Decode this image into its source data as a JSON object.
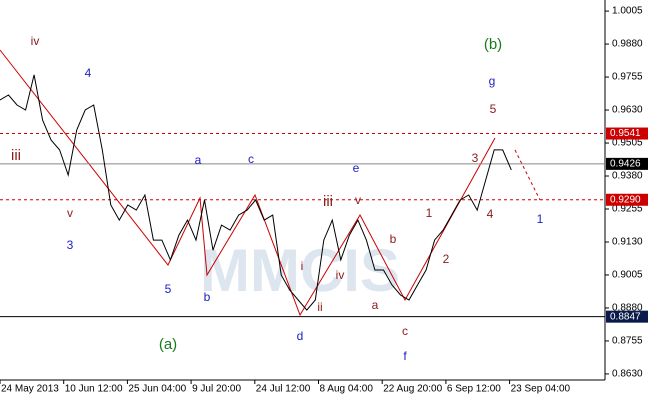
{
  "chart_data": {
    "type": "line",
    "color": "#000000",
    "values": [
      0.9668,
      0.9687,
      0.9649,
      0.963,
      0.9763,
      0.9592,
      0.9516,
      0.9479,
      0.9384,
      0.9554,
      0.963,
      0.9649,
      0.9479,
      0.927,
      0.9213,
      0.927,
      0.9251,
      0.9308,
      0.9137,
      0.9137,
      0.9062,
      0.9156,
      0.9213,
      0.9137,
      0.9289,
      0.9099,
      0.9194,
      0.9175,
      0.9232,
      0.9251,
      0.9289,
      0.9213,
      0.9232,
      0.9005,
      0.8948,
      0.891,
      0.8872,
      0.891,
      0.9137,
      0.9213,
      0.9062,
      0.9156,
      0.9213,
      0.9137,
      0.9024,
      0.9024,
      0.8967,
      0.8929,
      0.891,
      0.8967,
      0.9024,
      0.9137,
      0.9175,
      0.9232,
      0.9289,
      0.9308,
      0.9251,
      0.9365,
      0.9479,
      0.9479,
      0.9403,
      null,
      null,
      null,
      null,
      null,
      null,
      null,
      null,
      null,
      null,
      null
    ],
    "ylim": [
      0.8607,
      1.0047
    ],
    "yticks": [
      {
        "value": 1.0005,
        "label": "1.0005"
      },
      {
        "value": 0.988,
        "label": "0.9880"
      },
      {
        "value": 0.9755,
        "label": "0.9755"
      },
      {
        "value": 0.963,
        "label": "0.9630"
      },
      {
        "value": 0.9505,
        "label": "0.9505"
      },
      {
        "value": 0.938,
        "label": "0.9380"
      },
      {
        "value": 0.9255,
        "label": "0.9255"
      },
      {
        "value": 0.913,
        "label": "0.9130"
      },
      {
        "value": 0.9005,
        "label": "0.9005"
      },
      {
        "value": 0.888,
        "label": "0.8880"
      },
      {
        "value": 0.8755,
        "label": "0.8755"
      },
      {
        "value": 0.863,
        "label": "0.8630"
      }
    ],
    "xtick_labels": [
      "24 May 2013",
      "10 Jun 12:00",
      "25 Jun 04:00",
      "9 Jul 20:00",
      "24 Jul 12:00",
      "8 Aug 04:00",
      "22 Aug 20:00",
      "6 Sep 12:00",
      "23 Sep 04:00"
    ],
    "levels": [
      {
        "value": 0.9541,
        "label": "0.9541",
        "color": "#cc0000",
        "style": "dashed"
      },
      {
        "value": 0.9426,
        "label": "0.9426",
        "color": "#000000",
        "style": "solid"
      },
      {
        "value": 0.929,
        "label": "0.9290",
        "color": "#cc0000",
        "style": "dashed"
      },
      {
        "value": 0.8847,
        "label": "0.8847",
        "color": "#000000",
        "style": "solid"
      }
    ],
    "annotations": [
      {
        "text": "iv",
        "color": "#8b1a1a"
      },
      {
        "text": "4",
        "color": "#2020c0"
      },
      {
        "text": "iii",
        "color": "#8b1a1a"
      },
      {
        "text": "v",
        "color": "#8b1a1a"
      },
      {
        "text": "3",
        "color": "#2020c0"
      },
      {
        "text": "a",
        "color": "#2020c0"
      },
      {
        "text": "c",
        "color": "#2020c0"
      },
      {
        "text": "5",
        "color": "#2020c0"
      },
      {
        "text": "b",
        "color": "#2020c0"
      },
      {
        "text": "(a)",
        "color": "#1a7a1a"
      },
      {
        "text": "iii",
        "color": "#8b1a1a"
      },
      {
        "text": "v",
        "color": "#8b1a1a"
      },
      {
        "text": "e",
        "color": "#2020c0"
      },
      {
        "text": "i",
        "color": "#8b1a1a"
      },
      {
        "text": "iv",
        "color": "#8b1a1a"
      },
      {
        "text": "ii",
        "color": "#8b1a1a"
      },
      {
        "text": "d",
        "color": "#2020c0"
      },
      {
        "text": "b",
        "color": "#8b1a1a"
      },
      {
        "text": "a",
        "color": "#8b1a1a"
      },
      {
        "text": "c",
        "color": "#8b1a1a"
      },
      {
        "text": "f",
        "color": "#2020c0"
      },
      {
        "text": "1",
        "color": "#8b1a1a"
      },
      {
        "text": "2",
        "color": "#8b1a1a"
      },
      {
        "text": "3",
        "color": "#8b1a1a"
      },
      {
        "text": "4",
        "color": "#8b1a1a"
      },
      {
        "text": "5",
        "color": "#8b1a1a"
      },
      {
        "text": "g",
        "color": "#2020c0"
      },
      {
        "text": "(b)",
        "color": "#1a7a1a"
      },
      {
        "text": "1",
        "color": "#2020c0"
      }
    ],
    "watermark": "MMCIS"
  }
}
